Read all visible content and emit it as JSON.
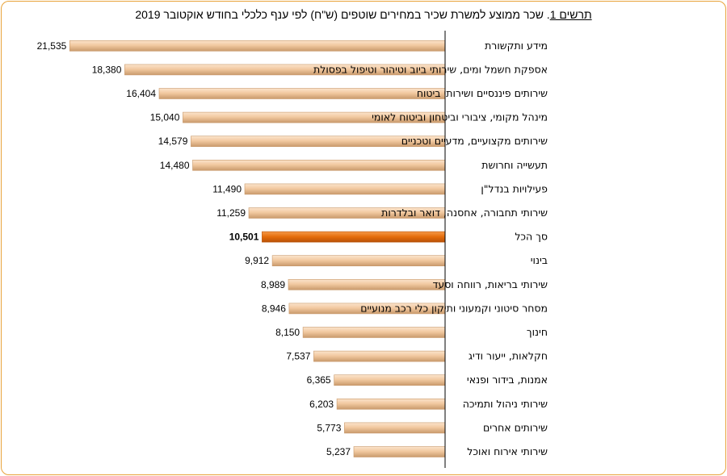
{
  "title": {
    "prefix": "תרשים 1",
    "text": ". שכר ממוצע למשרת שכיר במחירים שוטפים (ש\"ח) לפי ענף כלכלי בחודש אוקטובר 2019"
  },
  "colors": {
    "bar": "#f2c9a0",
    "bar_edge": "#c99a6c",
    "highlight": "#e46c0a",
    "highlight_edge": "#b85208",
    "axis": "#000000",
    "frame": "#e8a33a"
  },
  "chart_data": {
    "type": "bar",
    "orientation": "horizontal",
    "direction": "right-to-left",
    "title": "תרשים 1. שכר ממוצע למשרת שכיר במחירים שוטפים (ש\"ח) לפי ענף כלכלי בחודש אוקטובר 2019",
    "categories": [
      "מידע ותקשורת",
      "אספקת חשמל ומים, שירותי ביוב וטיהור וטיפול בפסולת",
      "שירותים פיננסיים ושירותי ביטוח",
      "מינהל מקומי, ציבורי וביטחון וביטוח לאומי",
      "שירותים מקצועיים, מדעיים וטכניים",
      "תעשייה וחרושת",
      "פעילויות בנדל\"ן",
      "שירותי תחבורה, אחסנה, דואר ובלדרות",
      "סך הכל",
      "בינוי",
      "שירותי בריאות, רווחה וסעד",
      "מסחר סיטוני וקמעוני ותיקון כלי רכב מנועיים",
      "חינוך",
      "חקלאות, ייעור ודיג",
      "אמנות, בידור ופנאי",
      "שירותי ניהול ותמיכה",
      "שירותים אחרים",
      "שירותי אירוח ואוכל"
    ],
    "values": [
      21535,
      18380,
      16404,
      15040,
      14579,
      14480,
      11490,
      11259,
      10501,
      9912,
      8989,
      8946,
      8150,
      7537,
      6365,
      6203,
      5773,
      5237
    ],
    "value_labels": [
      "21,535",
      "18,380",
      "16,404",
      "15,040",
      "14,579",
      "14,480",
      "11,490",
      "11,259",
      "10,501",
      "9,912",
      "8,989",
      "8,946",
      "8,150",
      "7,537",
      "6,365",
      "6,203",
      "5,773",
      "5,237"
    ],
    "highlight_category": "סך הכל",
    "grid": false,
    "legend": "none"
  }
}
